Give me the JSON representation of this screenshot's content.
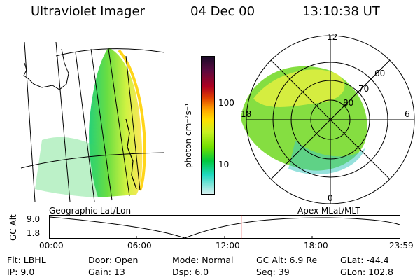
{
  "header": {
    "title": "Ultraviolet Imager",
    "date": "04 Dec 00",
    "time": "13:10:38 UT"
  },
  "colorbar": {
    "unit_label": "photon cm⁻²s⁻¹",
    "ticks": [
      "100",
      "10"
    ],
    "colors": [
      "#1a0a28",
      "#5a0a40",
      "#b00020",
      "#e04000",
      "#ffa000",
      "#ffe000",
      "#c8f020",
      "#70e000",
      "#00c840",
      "#20d8c0",
      "#d8f0f0"
    ]
  },
  "polar": {
    "mlt_labels": {
      "top": "12",
      "left": "18",
      "right": "6",
      "bottom": "0"
    },
    "lat_labels": [
      "60",
      "70",
      "80"
    ]
  },
  "alt_plot": {
    "ylabel": "GC Alt",
    "ymax": "9.0",
    "ymin": "1.8",
    "left_caption": "Geographic Lat/Lon",
    "right_caption": "Apex MLat/MLT",
    "xticks": [
      "00:00",
      "06:00",
      "12:00",
      "18:00",
      "23:59"
    ],
    "current_time_fraction": 0.547
  },
  "info": {
    "filter": "Flt: LBHL",
    "ip": "IP:  9.0",
    "door": "Door: Open",
    "gain": "Gain: 13",
    "mode": "Mode: Normal",
    "dsp": "Dsp:      6.0",
    "gcalt": "GC Alt: 6.9 Re",
    "seq": "Seq: 39",
    "glat": "GLat: -44.4",
    "glon": "GLon: 102.8"
  }
}
